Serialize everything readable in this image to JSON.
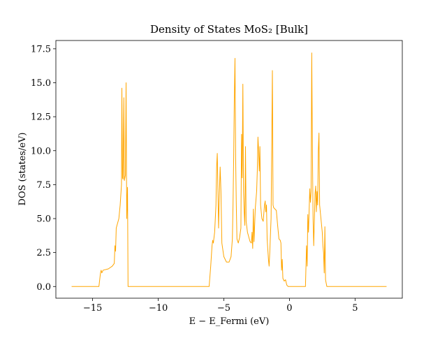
{
  "chart_data": {
    "type": "line",
    "title": "Density of States MoS₂ [Bulk]",
    "x_label": "E − E_Fermi (eV)",
    "y_label": "DOS (states/eV)",
    "xlim": [
      -17.8,
      8.6
    ],
    "ylim": [
      -0.86,
      18.11
    ],
    "xticks": [
      {
        "value": -15,
        "label": "−15"
      },
      {
        "value": -10,
        "label": "−10"
      },
      {
        "value": -5,
        "label": "−5"
      },
      0,
      5
    ],
    "yticks": [
      {
        "value": 0,
        "label": "0.0"
      },
      2.5,
      {
        "value": 5,
        "label": "5.0"
      },
      7.5,
      {
        "value": 10,
        "label": "10.0"
      },
      12.5,
      {
        "value": 15,
        "label": "15.0"
      },
      17.5
    ],
    "series": [
      {
        "color": "#ffa500",
        "x": [
          -16.6,
          -14.52,
          -14.4,
          -14.35,
          -14.3,
          -14.2,
          -13.8,
          -13.5,
          -13.35,
          -13.3,
          -13.25,
          -13.2,
          -13.0,
          -12.9,
          -12.8,
          -12.77,
          -12.72,
          -12.68,
          -12.62,
          -12.58,
          -12.5,
          -12.45,
          -12.4,
          -12.34,
          -12.3,
          -6.12,
          -6.0,
          -5.9,
          -5.85,
          -5.8,
          -5.7,
          -5.6,
          -5.55,
          -5.5,
          -5.45,
          -5.4,
          -5.35,
          -5.28,
          -5.22,
          -5.15,
          -5.0,
          -4.8,
          -4.6,
          -4.45,
          -4.35,
          -4.3,
          -4.25,
          -4.2,
          -4.15,
          -4.1,
          -4.05,
          -4.0,
          -3.9,
          -3.8,
          -3.7,
          -3.65,
          -3.6,
          -3.55,
          -3.5,
          -3.45,
          -3.4,
          -3.35,
          -3.3,
          -3.2,
          -3.0,
          -2.9,
          -2.85,
          -2.8,
          -2.75,
          -2.7,
          -2.6,
          -2.5,
          -2.45,
          -2.4,
          -2.35,
          -2.3,
          -2.25,
          -2.2,
          -2.1,
          -2.0,
          -1.9,
          -1.85,
          -1.8,
          -1.75,
          -1.7,
          -1.6,
          -1.55,
          -1.5,
          -1.4,
          -1.3,
          -1.25,
          -1.2,
          -1.0,
          -0.9,
          -0.8,
          -0.7,
          -0.65,
          -0.6,
          -0.55,
          -0.5,
          -0.4,
          -0.3,
          -0.2,
          -0.1,
          1.22,
          1.3,
          1.35,
          1.4,
          1.45,
          1.55,
          1.6,
          1.65,
          1.7,
          1.75,
          1.8,
          1.85,
          1.95,
          2.0,
          2.05,
          2.1,
          2.15,
          2.2,
          2.25,
          2.3,
          2.4,
          2.5,
          2.55,
          2.6,
          2.65,
          2.7,
          2.75,
          2.85,
          7.4
        ],
        "values": [
          0,
          0,
          1.0,
          1.2,
          1.0,
          1.2,
          1.3,
          1.5,
          1.7,
          3.0,
          2.6,
          4.3,
          5.0,
          6.0,
          7.5,
          14.6,
          8.0,
          7.9,
          13.9,
          7.8,
          8.2,
          15.0,
          5.0,
          7.3,
          0,
          0,
          1.5,
          3.0,
          3.4,
          3.2,
          4.0,
          6.0,
          8.8,
          9.8,
          7.0,
          4.3,
          6.5,
          8.8,
          7.0,
          3.2,
          2.2,
          1.8,
          1.8,
          2.2,
          3.5,
          6.0,
          9.5,
          14.0,
          16.8,
          9.5,
          6.0,
          3.5,
          3.2,
          3.6,
          4.3,
          11.2,
          8.0,
          14.9,
          7.0,
          5.5,
          4.5,
          10.3,
          4.8,
          4.0,
          3.3,
          3.2,
          4.0,
          2.8,
          5.7,
          3.3,
          5.8,
          7.0,
          8.5,
          11.0,
          10.0,
          8.5,
          10.3,
          6.0,
          5.0,
          4.8,
          6.0,
          6.3,
          5.5,
          6.0,
          3.5,
          2.0,
          1.5,
          2.5,
          5.0,
          15.9,
          6.0,
          5.8,
          5.6,
          4.5,
          3.5,
          3.4,
          3.2,
          1.2,
          2.0,
          0.6,
          0.4,
          0.5,
          0.1,
          0,
          0,
          3.0,
          1.5,
          5.3,
          4.0,
          7.2,
          6.2,
          7.0,
          17.2,
          10.0,
          5.0,
          3.0,
          6.8,
          7.4,
          5.5,
          7.0,
          6.0,
          10.0,
          11.3,
          6.0,
          5.0,
          4.0,
          3.0,
          2.5,
          1.0,
          4.4,
          0.5,
          0,
          0
        ]
      }
    ]
  }
}
